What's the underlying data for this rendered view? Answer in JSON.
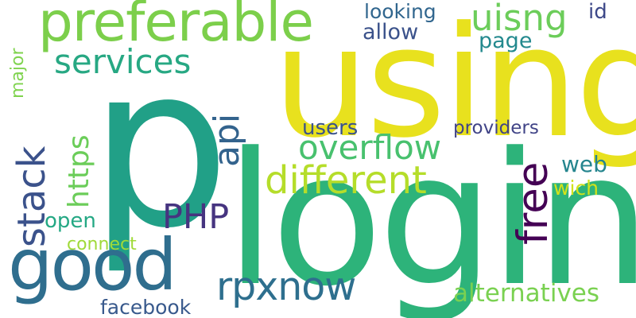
{
  "words": [
    {
      "text": "p",
      "color": "#21a087"
    },
    {
      "text": "login",
      "color": "#2db37a"
    },
    {
      "text": "using",
      "color": "#e8e11e"
    },
    {
      "text": "preferable",
      "color": "#7ccf4b"
    },
    {
      "text": "good",
      "color": "#2f6e8e"
    },
    {
      "text": "services",
      "color": "#27a883"
    },
    {
      "text": "overflow",
      "color": "#48c16e"
    },
    {
      "text": "different",
      "color": "#b5dd2a"
    },
    {
      "text": "rpxnow",
      "color": "#2e6f8e"
    },
    {
      "text": "PHP",
      "color": "#463480"
    },
    {
      "text": "stack",
      "color": "#3b528b"
    },
    {
      "text": "https",
      "color": "#6bcd59"
    },
    {
      "text": "api",
      "color": "#33638d"
    },
    {
      "text": "free",
      "color": "#440154"
    },
    {
      "text": "uisng",
      "color": "#6ccd5a"
    },
    {
      "text": "looking",
      "color": "#31668e"
    },
    {
      "text": "allow",
      "color": "#3b528b"
    },
    {
      "text": "id",
      "color": "#3e4989"
    },
    {
      "text": "page",
      "color": "#23898e"
    },
    {
      "text": "major",
      "color": "#7fd34e"
    },
    {
      "text": "users",
      "color": "#3b528b"
    },
    {
      "text": "providers",
      "color": "#414487"
    },
    {
      "text": "web",
      "color": "#25858e"
    },
    {
      "text": "wich",
      "color": "#d2e21b"
    },
    {
      "text": "open",
      "color": "#24a884"
    },
    {
      "text": "connect",
      "color": "#a0da39"
    },
    {
      "text": "alternatives",
      "color": "#7ad151"
    },
    {
      "text": "facebook",
      "color": "#38598c"
    }
  ]
}
